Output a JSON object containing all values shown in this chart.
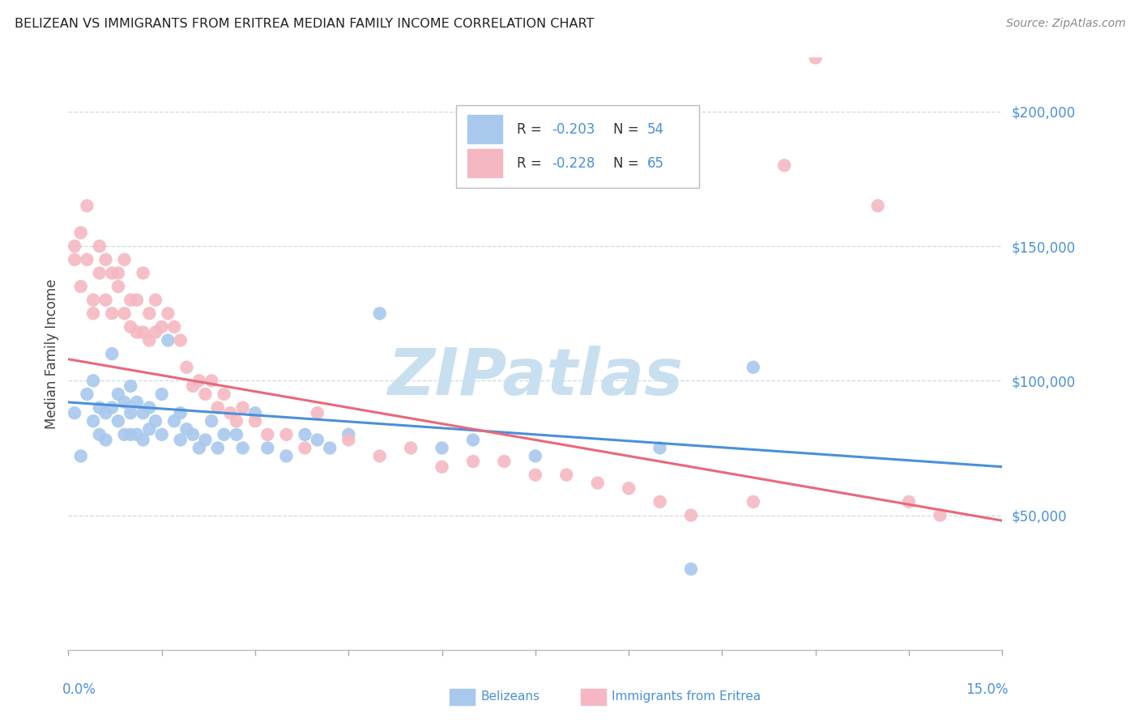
{
  "title": "BELIZEAN VS IMMIGRANTS FROM ERITREA MEDIAN FAMILY INCOME CORRELATION CHART",
  "source": "Source: ZipAtlas.com",
  "ylabel": "Median Family Income",
  "xlim": [
    0.0,
    0.15
  ],
  "ylim": [
    0,
    220000
  ],
  "blue_color": "#a8c8ee",
  "pink_color": "#f5b8c2",
  "blue_line_color": "#4a90d9",
  "pink_line_color": "#e8687a",
  "tick_label_color": "#4a90d9",
  "watermark_color": "#c8dff0",
  "blue_label": "R = -0.203   N = 54",
  "pink_label": "R = -0.228   N = 65",
  "blue_line_y0": 92000,
  "blue_line_y1": 68000,
  "pink_line_y0": 108000,
  "pink_line_y1": 48000,
  "blue_x": [
    0.001,
    0.002,
    0.003,
    0.004,
    0.004,
    0.005,
    0.005,
    0.006,
    0.006,
    0.007,
    0.007,
    0.008,
    0.008,
    0.009,
    0.009,
    0.01,
    0.01,
    0.01,
    0.011,
    0.011,
    0.012,
    0.012,
    0.013,
    0.013,
    0.014,
    0.015,
    0.015,
    0.016,
    0.017,
    0.018,
    0.018,
    0.019,
    0.02,
    0.021,
    0.022,
    0.023,
    0.024,
    0.025,
    0.027,
    0.028,
    0.03,
    0.032,
    0.035,
    0.038,
    0.04,
    0.042,
    0.045,
    0.05,
    0.06,
    0.065,
    0.075,
    0.095,
    0.1,
    0.11
  ],
  "blue_y": [
    88000,
    72000,
    95000,
    100000,
    85000,
    90000,
    80000,
    88000,
    78000,
    110000,
    90000,
    95000,
    85000,
    92000,
    80000,
    98000,
    88000,
    80000,
    92000,
    80000,
    88000,
    78000,
    90000,
    82000,
    85000,
    95000,
    80000,
    115000,
    85000,
    88000,
    78000,
    82000,
    80000,
    75000,
    78000,
    85000,
    75000,
    80000,
    80000,
    75000,
    88000,
    75000,
    72000,
    80000,
    78000,
    75000,
    80000,
    125000,
    75000,
    78000,
    72000,
    75000,
    30000,
    105000
  ],
  "pink_x": [
    0.001,
    0.001,
    0.002,
    0.002,
    0.003,
    0.003,
    0.004,
    0.004,
    0.005,
    0.005,
    0.006,
    0.006,
    0.007,
    0.007,
    0.008,
    0.008,
    0.009,
    0.009,
    0.01,
    0.01,
    0.011,
    0.011,
    0.012,
    0.012,
    0.013,
    0.013,
    0.014,
    0.014,
    0.015,
    0.016,
    0.017,
    0.018,
    0.019,
    0.02,
    0.021,
    0.022,
    0.023,
    0.024,
    0.025,
    0.026,
    0.027,
    0.028,
    0.03,
    0.032,
    0.035,
    0.038,
    0.04,
    0.045,
    0.05,
    0.055,
    0.06,
    0.065,
    0.07,
    0.075,
    0.08,
    0.085,
    0.09,
    0.095,
    0.1,
    0.11,
    0.115,
    0.12,
    0.13,
    0.135,
    0.14
  ],
  "pink_y": [
    145000,
    150000,
    155000,
    135000,
    145000,
    165000,
    130000,
    125000,
    150000,
    140000,
    145000,
    130000,
    140000,
    125000,
    140000,
    135000,
    145000,
    125000,
    130000,
    120000,
    130000,
    118000,
    140000,
    118000,
    125000,
    115000,
    130000,
    118000,
    120000,
    125000,
    120000,
    115000,
    105000,
    98000,
    100000,
    95000,
    100000,
    90000,
    95000,
    88000,
    85000,
    90000,
    85000,
    80000,
    80000,
    75000,
    88000,
    78000,
    72000,
    75000,
    68000,
    70000,
    70000,
    65000,
    65000,
    62000,
    60000,
    55000,
    50000,
    55000,
    180000,
    220000,
    165000,
    55000,
    50000
  ]
}
